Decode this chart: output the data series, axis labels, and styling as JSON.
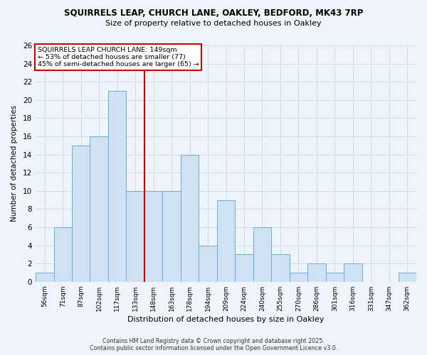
{
  "title_line1": "SQUIRRELS LEAP, CHURCH LANE, OAKLEY, BEDFORD, MK43 7RP",
  "title_line2": "Size of property relative to detached houses in Oakley",
  "xlabel": "Distribution of detached houses by size in Oakley",
  "ylabel": "Number of detached properties",
  "bar_labels": [
    "56sqm",
    "71sqm",
    "87sqm",
    "102sqm",
    "117sqm",
    "133sqm",
    "148sqm",
    "163sqm",
    "178sqm",
    "194sqm",
    "209sqm",
    "224sqm",
    "240sqm",
    "255sqm",
    "270sqm",
    "286sqm",
    "301sqm",
    "316sqm",
    "331sqm",
    "347sqm",
    "362sqm"
  ],
  "bar_values": [
    1,
    6,
    15,
    16,
    21,
    10,
    10,
    10,
    14,
    4,
    9,
    3,
    6,
    3,
    1,
    2,
    1,
    2,
    0,
    0,
    1
  ],
  "bar_color": "#cfe2f3",
  "bar_edge_color": "#6baed6",
  "grid_color": "#c8d8e8",
  "vline_x_index": 6,
  "annotation_text_line1": "SQUIRRELS LEAP CHURCH LANE: 149sqm",
  "annotation_text_line2": "← 53% of detached houses are smaller (77)",
  "annotation_text_line3": "45% of semi-detached houses are larger (65) →",
  "annotation_box_facecolor": "#ffffff",
  "annotation_box_edgecolor": "#cc0000",
  "vline_color": "#cc0000",
  "ylim_max": 26,
  "ytick_max": 26,
  "ytick_step": 2,
  "footer_line1": "Contains HM Land Registry data © Crown copyright and database right 2025.",
  "footer_line2": "Contains public sector information licensed under the Open Government Licence v3.0.",
  "bg_color": "#eef4fa",
  "plot_bg_color": "#eef4fa",
  "fig_width": 6.0,
  "fig_height": 5.0,
  "dpi": 100
}
